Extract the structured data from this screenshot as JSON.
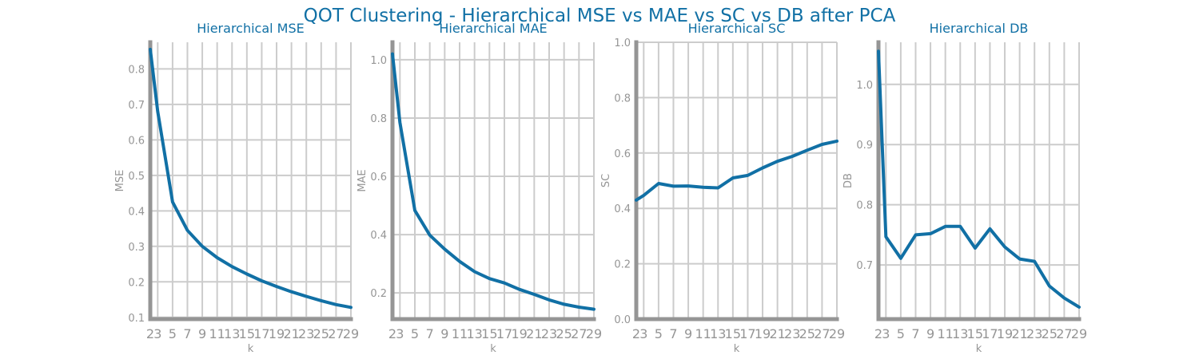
{
  "figure": {
    "title": "QOT Clustering - Hierarchical MSE vs MAE vs SC vs DB after PCA",
    "line_color": "#1170a5",
    "axis_color": "#959595",
    "grid_color": "#cccccc"
  },
  "chart_data": [
    {
      "type": "line",
      "title": "Hierarchical MSE",
      "xlabel": "k",
      "ylabel": "MSE",
      "x": [
        2,
        3,
        5,
        7,
        9,
        11,
        13,
        15,
        17,
        19,
        21,
        23,
        25,
        27,
        29
      ],
      "y": [
        0.855,
        0.68,
        0.425,
        0.345,
        0.3,
        0.268,
        0.243,
        0.222,
        0.203,
        0.187,
        0.172,
        0.159,
        0.147,
        0.136,
        0.128
      ],
      "xlim": [
        2,
        29
      ],
      "ylim": [
        0.095,
        0.875
      ],
      "yticks": [
        0.1,
        0.2,
        0.3,
        0.4,
        0.5,
        0.6,
        0.7,
        0.8
      ],
      "ytick_labels": [
        "0.1",
        "0.2",
        "0.3",
        "0.4",
        "0.5",
        "0.6",
        "0.7",
        "0.8"
      ],
      "xticks": [
        2,
        3,
        5,
        7,
        9,
        11,
        13,
        15,
        17,
        19,
        21,
        23,
        25,
        27,
        29
      ],
      "grid": true
    },
    {
      "type": "line",
      "title": "Hierarchical MAE",
      "xlabel": "k",
      "ylabel": "MAE",
      "x": [
        2,
        3,
        5,
        7,
        9,
        11,
        13,
        15,
        17,
        19,
        21,
        23,
        25,
        27,
        29
      ],
      "y": [
        1.02,
        0.785,
        0.483,
        0.398,
        0.35,
        0.308,
        0.273,
        0.249,
        0.234,
        0.212,
        0.195,
        0.176,
        0.161,
        0.151,
        0.144
      ],
      "xlim": [
        2,
        29
      ],
      "ylim": [
        0.11,
        1.06
      ],
      "yticks": [
        0.2,
        0.4,
        0.6,
        0.8,
        1.0
      ],
      "ytick_labels": [
        "0.2",
        "0.4",
        "0.6",
        "0.8",
        "1.0"
      ],
      "xticks": [
        2,
        3,
        5,
        7,
        9,
        11,
        13,
        15,
        17,
        19,
        21,
        23,
        25,
        27,
        29
      ],
      "grid": true
    },
    {
      "type": "line",
      "title": "Hierarchical SC",
      "xlabel": "k",
      "ylabel": "SC",
      "x": [
        2,
        3,
        5,
        7,
        9,
        11,
        13,
        15,
        17,
        19,
        21,
        23,
        25,
        27,
        29
      ],
      "y": [
        0.43,
        0.447,
        0.49,
        0.48,
        0.481,
        0.476,
        0.474,
        0.51,
        0.519,
        0.546,
        0.57,
        0.588,
        0.61,
        0.631,
        0.643
      ],
      "xlim": [
        2,
        29
      ],
      "ylim": [
        0.0,
        1.0
      ],
      "yticks": [
        0.0,
        0.2,
        0.4,
        0.6,
        0.8,
        1.0
      ],
      "ytick_labels": [
        "0.0",
        "0.2",
        "0.4",
        "0.6",
        "0.8",
        "1.0"
      ],
      "xticks": [
        2,
        3,
        5,
        7,
        9,
        11,
        13,
        15,
        17,
        19,
        21,
        23,
        25,
        27,
        29
      ],
      "grid": true
    },
    {
      "type": "line",
      "title": "Hierarchical DB",
      "xlabel": "k",
      "ylabel": "DB",
      "x": [
        2,
        3,
        5,
        7,
        9,
        11,
        13,
        15,
        17,
        19,
        21,
        23,
        25,
        27,
        29
      ],
      "y": [
        1.055,
        0.747,
        0.711,
        0.75,
        0.752,
        0.764,
        0.764,
        0.728,
        0.76,
        0.73,
        0.71,
        0.706,
        0.665,
        0.645,
        0.63
      ],
      "xlim": [
        2,
        29
      ],
      "ylim": [
        0.61,
        1.07
      ],
      "yticks": [
        0.7,
        0.8,
        0.9,
        1.0
      ],
      "ytick_labels": [
        "0.7",
        "0.8",
        "0.9",
        "1.0"
      ],
      "xticks": [
        2,
        3,
        5,
        7,
        9,
        11,
        13,
        15,
        17,
        19,
        21,
        23,
        25,
        27,
        29
      ],
      "grid": true
    }
  ]
}
